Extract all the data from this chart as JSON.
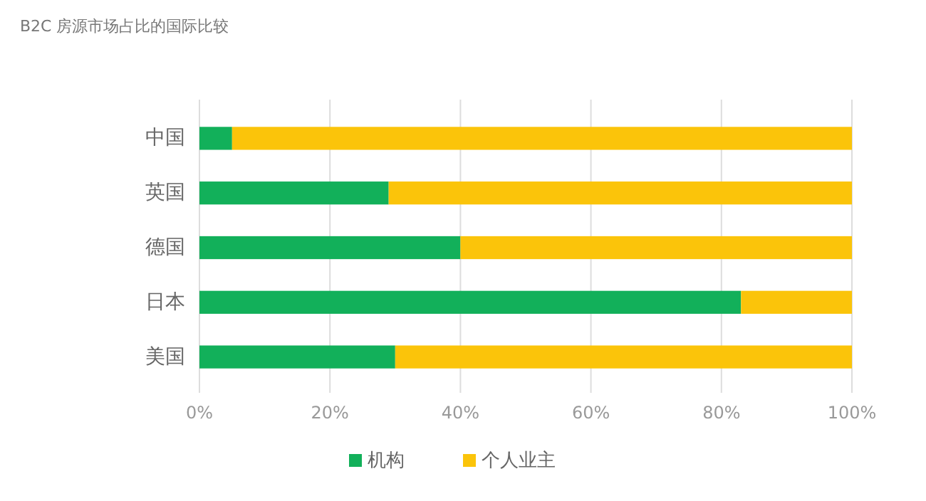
{
  "chart_data": {
    "type": "bar",
    "title": "B2C 房源市场占比的国际比较",
    "orientation": "horizontal",
    "stacked": true,
    "categories": [
      "中国",
      "英国",
      "德国",
      "日本",
      "美国"
    ],
    "series": [
      {
        "name": "机构",
        "color": "#12b05a",
        "values": [
          5,
          29,
          40,
          83,
          30
        ]
      },
      {
        "name": "个人业主",
        "color": "#fbc40a",
        "values": [
          95,
          71,
          60,
          17,
          70
        ]
      }
    ],
    "xlim": [
      0,
      100
    ],
    "xticks": [
      {
        "value": 0,
        "label": "0%"
      },
      {
        "value": 20,
        "label": "20%"
      },
      {
        "value": 40,
        "label": "40%"
      },
      {
        "value": 60,
        "label": "60%"
      },
      {
        "value": 80,
        "label": "80%"
      },
      {
        "value": 100,
        "label": "100%"
      }
    ],
    "grid": "x",
    "legend": "bottom"
  }
}
